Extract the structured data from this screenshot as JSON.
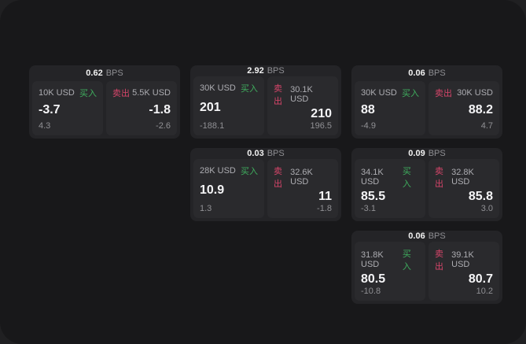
{
  "labels": {
    "bps": "BPS",
    "buy": "买入",
    "sell": "卖出"
  },
  "colors": {
    "buy_green": "#3fae5e",
    "sell_red": "#d6456a",
    "body_bg": "#202022",
    "panel_bg": "#18181a",
    "card_bg": "#242427",
    "subcard_bg": "#2a2a2d"
  },
  "cards": [
    {
      "bps": "0.62",
      "buy": {
        "amount": "10K USD",
        "value": "-3.7",
        "sub": "4.3"
      },
      "sell": {
        "amount": "5.5K USD",
        "value": "-1.8",
        "sub": "-2.6"
      }
    },
    {
      "bps": "2.92",
      "buy": {
        "amount": "30K USD",
        "value": "201",
        "sub": "-188.1"
      },
      "sell": {
        "amount": "30.1K USD",
        "value": "210",
        "sub": "196.5"
      }
    },
    {
      "bps": "0.06",
      "buy": {
        "amount": "30K USD",
        "value": "88",
        "sub": "-4.9"
      },
      "sell": {
        "amount": "30K USD",
        "value": "88.2",
        "sub": "4.7"
      }
    },
    {
      "bps": "0.03",
      "buy": {
        "amount": "28K USD",
        "value": "10.9",
        "sub": "1.3"
      },
      "sell": {
        "amount": "32.6K USD",
        "value": "11",
        "sub": "-1.8"
      }
    },
    {
      "bps": "0.09",
      "buy": {
        "amount": "34.1K USD",
        "value": "85.5",
        "sub": "-3.1"
      },
      "sell": {
        "amount": "32.8K USD",
        "value": "85.8",
        "sub": "3.0"
      }
    },
    {
      "bps": "0.06",
      "buy": {
        "amount": "31.8K USD",
        "value": "80.5",
        "sub": "-10.8"
      },
      "sell": {
        "amount": "39.1K USD",
        "value": "80.7",
        "sub": "10.2"
      }
    }
  ]
}
